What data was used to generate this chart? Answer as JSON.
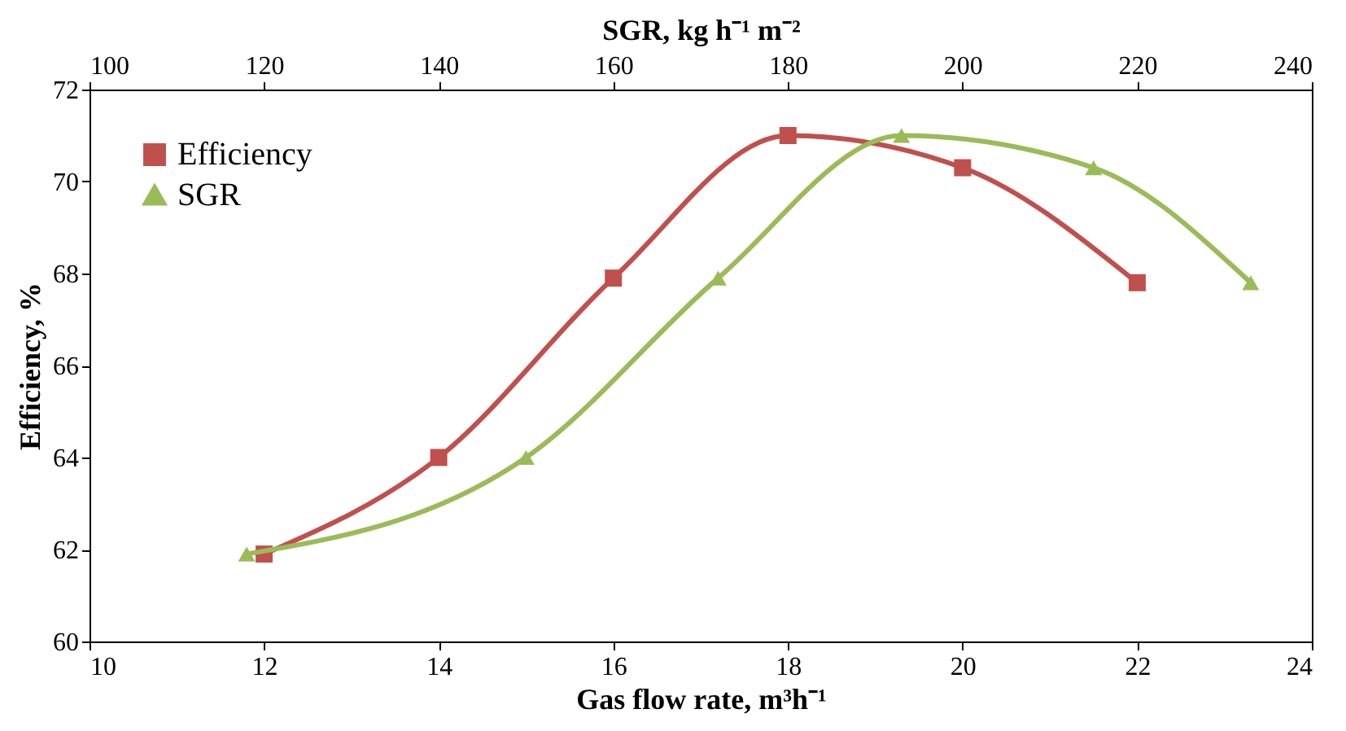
{
  "chart_data": {
    "type": "line",
    "xlabel": "Gas flow rate, m³h⁻¹",
    "x2label": "SGR,  kg h⁻¹ m⁻²",
    "ylabel": "Efficiency, %",
    "xlim": [
      10,
      24
    ],
    "xticks": [
      10,
      12,
      14,
      16,
      18,
      20,
      22,
      24
    ],
    "x2lim": [
      100,
      240
    ],
    "x2ticks": [
      100,
      120,
      140,
      160,
      180,
      200,
      220,
      240
    ],
    "ylim": [
      60,
      72
    ],
    "yticks": [
      60,
      62,
      64,
      66,
      68,
      70,
      72
    ],
    "grid": false,
    "legend": "top left",
    "series": [
      {
        "name": "Efficiency",
        "color": "#c0504d",
        "marker": "square",
        "x": [
          12,
          14,
          16,
          18,
          20,
          22
        ],
        "values": [
          61.9,
          64.0,
          67.9,
          71.0,
          70.3,
          67.8
        ]
      },
      {
        "name": "SGR",
        "color": "#9bbb59",
        "marker": "triangle",
        "axis": "x2",
        "x": [
          118,
          150,
          172,
          193,
          215,
          233
        ],
        "values": [
          61.9,
          64.0,
          67.9,
          71.0,
          70.3,
          67.8
        ]
      }
    ]
  }
}
